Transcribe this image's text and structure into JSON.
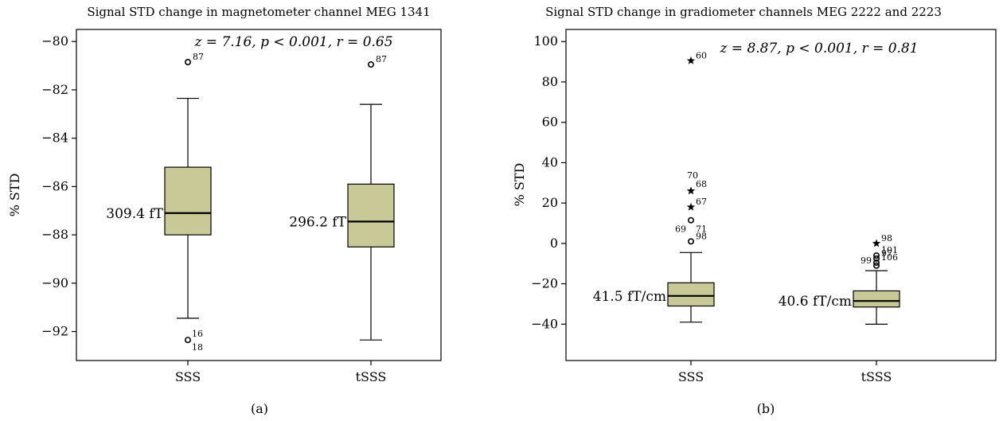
{
  "colors": {
    "box_fill": "#c9c998",
    "axis": "#000000",
    "background": "#ffffff"
  },
  "chart_data": [
    {
      "type": "box",
      "panel_label": "(a)",
      "title": "Signal STD change in magnetometer channel MEG 1341",
      "ylabel": "% STD",
      "ylim": [
        -93.2,
        -79.5
      ],
      "yticks": [
        -80,
        -82,
        -84,
        -86,
        -88,
        -90,
        -92
      ],
      "categories": [
        "SSS",
        "tSSS"
      ],
      "stat_text": "z = 7.16, p < 0.001, r = 0.65",
      "boxes": [
        {
          "category": "SSS",
          "annotation": "309.4 fT",
          "whisker_low": -91.45,
          "q1": -88.0,
          "median": -87.1,
          "q3": -85.2,
          "whisker_high": -82.35,
          "outliers": [
            {
              "value": -80.85,
              "marker": "circle",
              "labels": [
                "87"
              ]
            },
            {
              "value": -92.35,
              "marker": "circle",
              "labels": [
                "16",
                "18"
              ]
            }
          ]
        },
        {
          "category": "tSSS",
          "annotation": "296.2 fT",
          "whisker_low": -92.35,
          "q1": -88.5,
          "median": -87.45,
          "q3": -85.9,
          "whisker_high": -82.6,
          "outliers": [
            {
              "value": -80.95,
              "marker": "circle",
              "labels": [
                "87"
              ]
            }
          ]
        }
      ]
    },
    {
      "type": "box",
      "panel_label": "(b)",
      "title": "Signal STD change in gradiometer channels MEG 2222 and 2223",
      "ylabel": "% STD",
      "ylim": [
        -58,
        106
      ],
      "yticks": [
        100,
        80,
        60,
        40,
        20,
        0,
        -20,
        -40
      ],
      "categories": [
        "SSS",
        "tSSS"
      ],
      "stat_text": "z = 8.87, p < 0.001, r = 0.81",
      "boxes": [
        {
          "category": "SSS",
          "annotation": "41.5 fT/cm",
          "whisker_low": -39,
          "q1": -31,
          "median": -26,
          "q3": -19.5,
          "whisker_high": -4.5,
          "outliers": [
            {
              "value": 90.5,
              "marker": "star",
              "labels": [
                "60"
              ]
            },
            {
              "value": 26,
              "marker": "star",
              "labels": [
                "70",
                "68"
              ]
            },
            {
              "value": 18,
              "marker": "star",
              "labels": [
                "67"
              ]
            },
            {
              "value": 11.5,
              "marker": "circle",
              "labels": [
                "69",
                "71"
              ]
            },
            {
              "value": 1,
              "marker": "circle",
              "labels": [
                "98"
              ]
            }
          ]
        },
        {
          "category": "tSSS",
          "annotation": "40.6 fT/cm",
          "whisker_low": -40,
          "q1": -31.5,
          "median": -28.5,
          "q3": -23.5,
          "whisker_high": -13.5,
          "outliers": [
            {
              "value": 0,
              "marker": "star",
              "labels": [
                "98"
              ]
            },
            {
              "value": -6,
              "marker": "circle",
              "labels": [
                "101"
              ]
            },
            {
              "value": -7.5,
              "marker": "circle",
              "labels": [
                "97"
              ]
            },
            {
              "value": -9.5,
              "marker": "circle",
              "labels": [
                "106"
              ]
            },
            {
              "value": -11,
              "marker": "circle",
              "labels": [
                "99"
              ]
            }
          ]
        }
      ]
    }
  ]
}
